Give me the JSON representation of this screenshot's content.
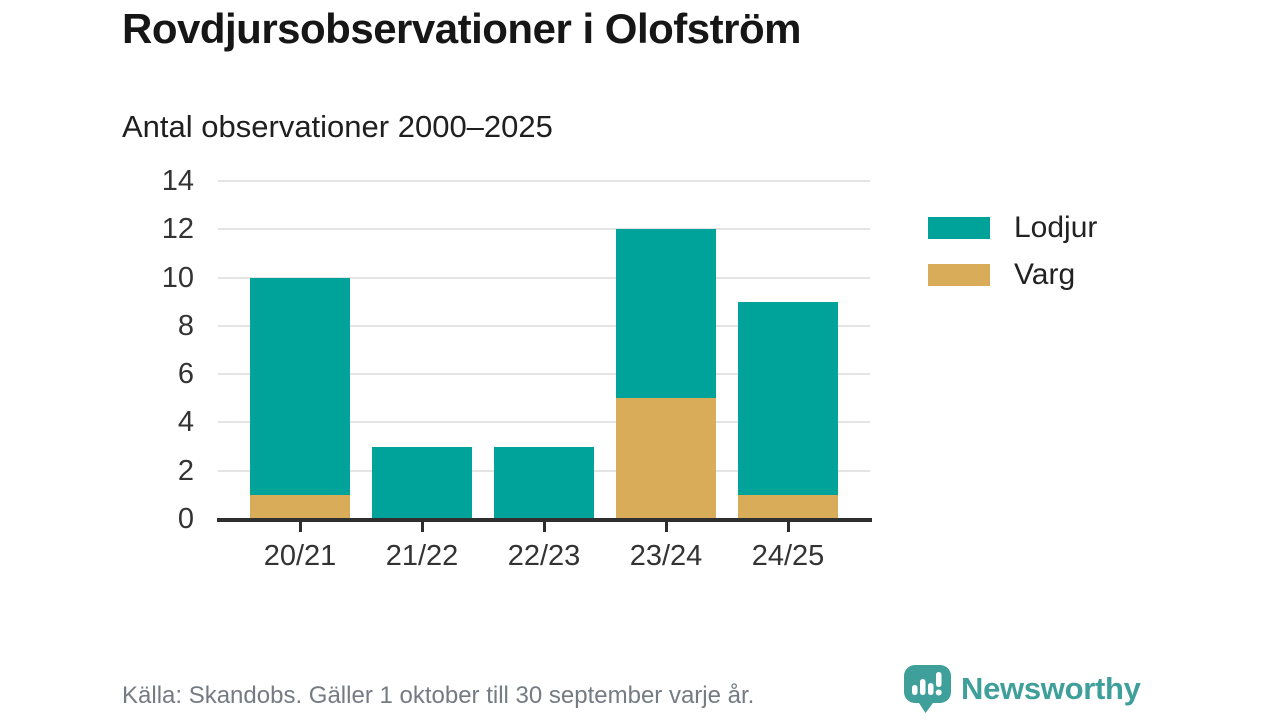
{
  "title": "Rovdjursobservationer i Olofström",
  "subtitle": "Antal observationer 2000–2025",
  "footer": {
    "source_note": "Källa: Skandobs. Gäller 1 oktober till 30 september varje år."
  },
  "branding": {
    "name": "Newsworthy",
    "icon": "bar-chart-speech-bubble-icon",
    "color": "#3f9f9a"
  },
  "colors": {
    "lodjur": "#00a399",
    "varg": "#d9ac5a",
    "gridline": "#e4e4e4",
    "axis_line": "#2e2e2e",
    "tick_text": "#333333",
    "footer_text": "#757b83",
    "title_text": "#161616"
  },
  "chart_data": {
    "type": "bar",
    "stacked": true,
    "title": "Rovdjursobservationer i Olofström",
    "subtitle": "Antal observationer 2000–2025",
    "categories": [
      "20/21",
      "21/22",
      "22/23",
      "23/24",
      "24/25"
    ],
    "series": [
      {
        "name": "Lodjur",
        "color": "#00a399",
        "values": [
          9,
          3,
          3,
          7,
          8
        ]
      },
      {
        "name": "Varg",
        "color": "#d9ac5a",
        "values": [
          1,
          0,
          0,
          5,
          1
        ]
      }
    ],
    "stack_order_bottom_to_top": [
      "Varg",
      "Lodjur"
    ],
    "totals": [
      10,
      3,
      3,
      12,
      9
    ],
    "xlabel": "",
    "ylabel": "",
    "ylim": [
      0,
      14
    ],
    "yticks": [
      0,
      2,
      4,
      6,
      8,
      10,
      12,
      14
    ],
    "grid": true,
    "legend_position": "right"
  }
}
